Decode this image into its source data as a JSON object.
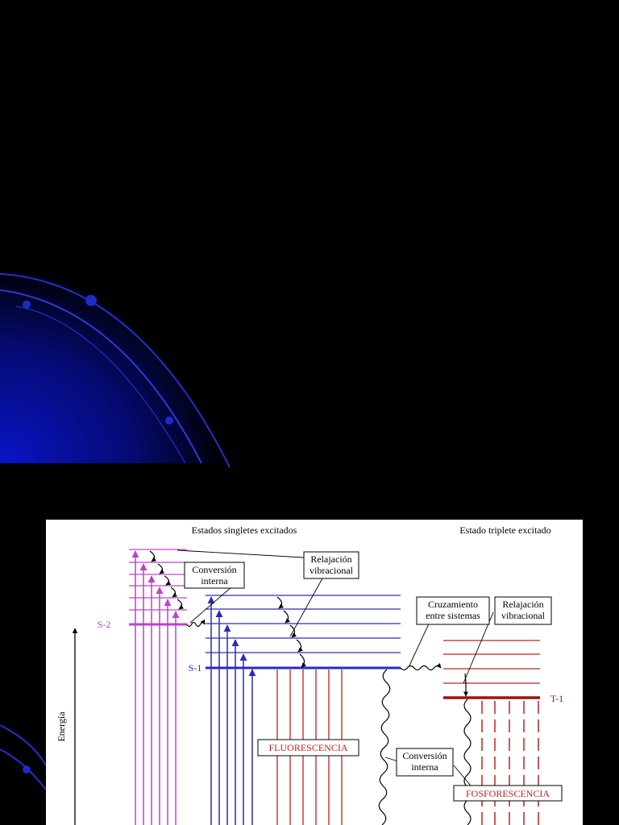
{
  "header": {
    "singlets": "Estados singletes excitados",
    "triplet": "Estado triplete excitado"
  },
  "levels": {
    "s2": "S-2",
    "s1": "S-1",
    "t1": "T-1"
  },
  "axis": {
    "energy": "Energía"
  },
  "labels": {
    "internal_conversion_top": [
      "Conversión",
      "interna"
    ],
    "vibrational_relaxation_left": [
      "Relajación",
      "vibracional"
    ],
    "intersystem_crossing": [
      "Cruzamiento",
      "entre sistemas"
    ],
    "vibrational_relaxation_right": [
      "Relajación",
      "vibracional"
    ],
    "internal_conversion_bottom": [
      "Conversión",
      "interna"
    ]
  },
  "processes": {
    "fluorescence": "FLUORESCENCIA",
    "phosphorescence": "FOSFORESCENCIA"
  }
}
